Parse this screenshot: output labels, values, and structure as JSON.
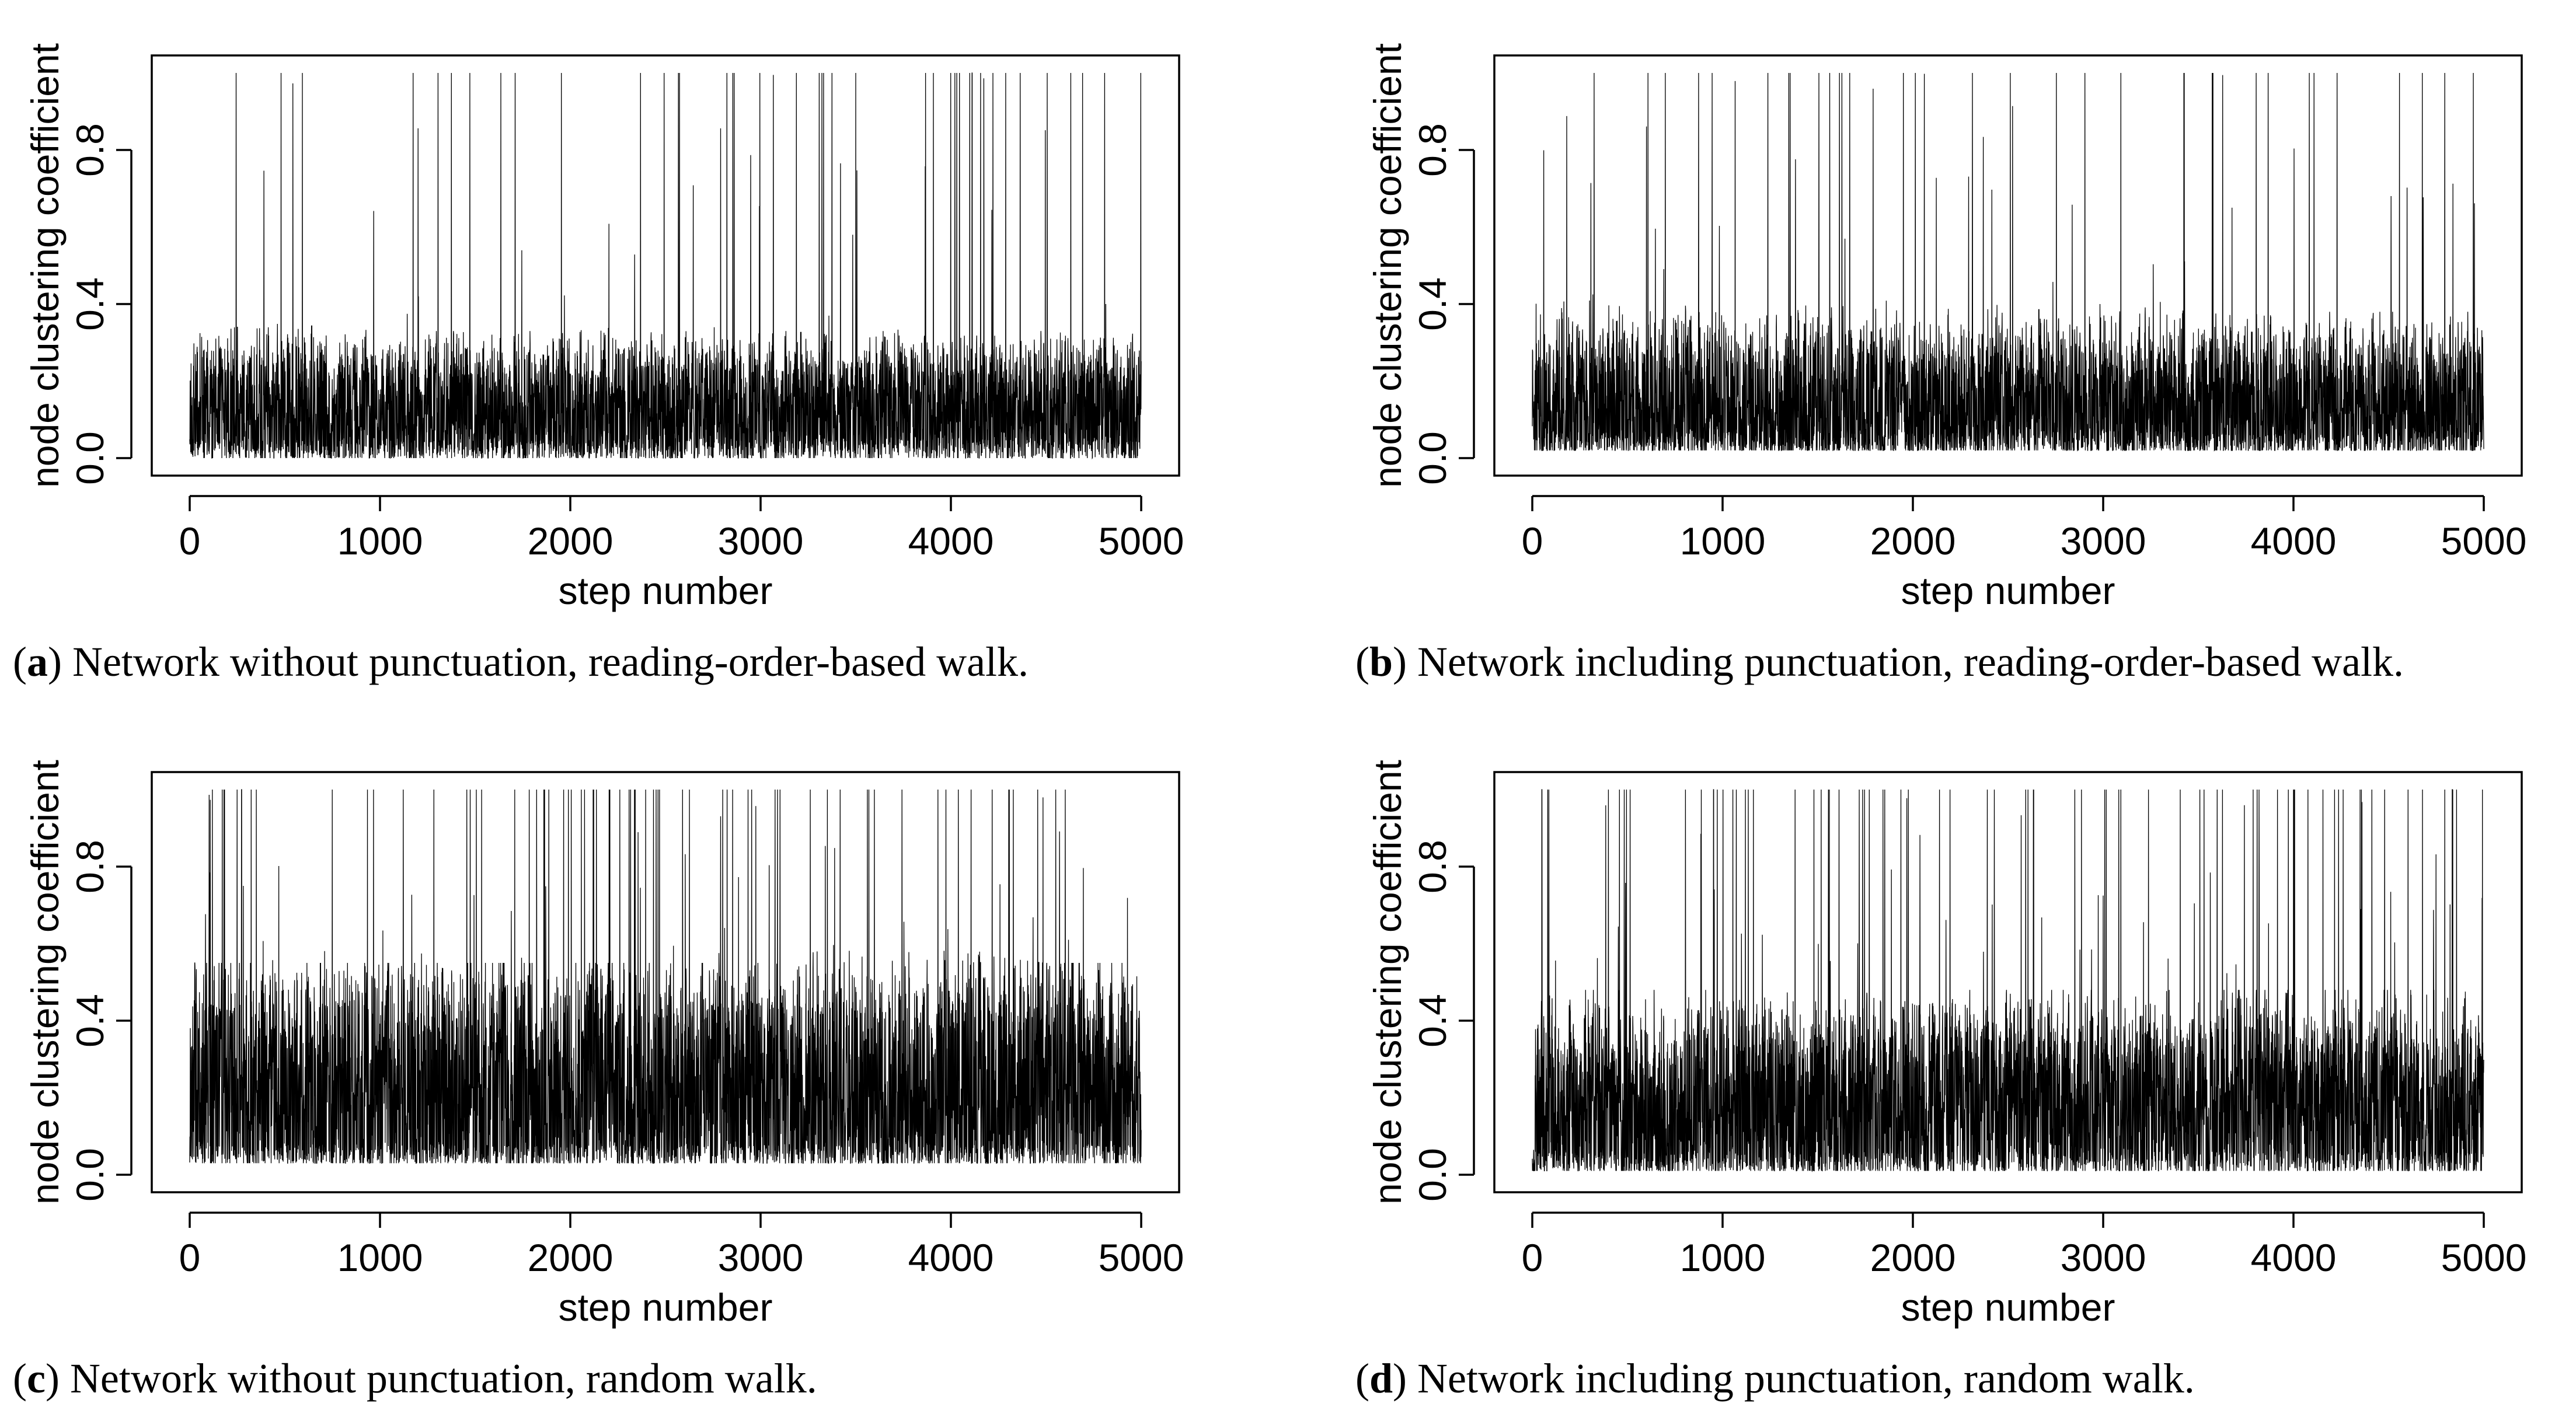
{
  "chart_data": [
    {
      "type": "line",
      "id": "a",
      "caption_letter": "a",
      "caption_text": " Network without punctuation, reading-order-based walk.",
      "xlabel": "step number",
      "ylabel": "node clustering coefficient",
      "xlim": [
        0,
        5000
      ],
      "ylim": [
        0,
        1
      ],
      "xticks": [
        "0",
        "1000",
        "2000",
        "3000",
        "4000",
        "5000"
      ],
      "yticks": [
        "0.0",
        "0.4",
        "0.8"
      ],
      "series": [
        {
          "name": "node clustering coefficient",
          "n_steps": 5000,
          "seed": 11,
          "base_mean": 0.14,
          "base_spread": 0.12,
          "spike_rate": 0.012,
          "spike_max": 1.0,
          "floor": 0.0
        }
      ],
      "envelope": {
        "x": [
          0,
          500,
          1000,
          1500,
          2000,
          2500,
          3000,
          3500,
          4000,
          4500,
          5000
        ],
        "typical_max": [
          0.33,
          0.35,
          0.33,
          0.33,
          0.33,
          0.35,
          0.33,
          0.33,
          0.33,
          0.33,
          0.33
        ]
      }
    },
    {
      "type": "line",
      "id": "b",
      "caption_letter": "b",
      "caption_text": " Network including punctuation, reading-order-based walk.",
      "xlabel": "step number",
      "ylabel": "node clustering coefficient",
      "xlim": [
        0,
        5000
      ],
      "ylim": [
        0,
        1
      ],
      "xticks": [
        "0",
        "1000",
        "2000",
        "3000",
        "4000",
        "5000"
      ],
      "yticks": [
        "0.0",
        "0.4",
        "0.8"
      ],
      "series": [
        {
          "name": "node clustering coefficient",
          "n_steps": 5000,
          "seed": 23,
          "base_mean": 0.16,
          "base_spread": 0.14,
          "spike_rate": 0.013,
          "spike_max": 1.0,
          "floor": 0.02
        }
      ],
      "envelope": {
        "x": [
          0,
          500,
          1000,
          1500,
          2000,
          2500,
          3000,
          3500,
          4000,
          4500,
          5000
        ],
        "typical_max": [
          0.4,
          0.42,
          0.4,
          0.4,
          0.38,
          0.4,
          0.4,
          0.38,
          0.38,
          0.38,
          0.38
        ]
      }
    },
    {
      "type": "line",
      "id": "c",
      "caption_letter": "c",
      "caption_text": " Network without punctuation, random walk.",
      "xlabel": "step number",
      "ylabel": "node clustering coefficient",
      "xlim": [
        0,
        5000
      ],
      "ylim": [
        0,
        1
      ],
      "xticks": [
        "0",
        "1000",
        "2000",
        "3000",
        "4000",
        "5000"
      ],
      "yticks": [
        "0.0",
        "0.4",
        "0.8"
      ],
      "series": [
        {
          "name": "node clustering coefficient",
          "n_steps": 5000,
          "seed": 37,
          "base_mean": 0.26,
          "base_spread": 0.2,
          "spike_rate": 0.02,
          "spike_max": 1.0,
          "floor": 0.03
        }
      ],
      "envelope": {
        "x": [
          0,
          500,
          1000,
          1500,
          2000,
          2500,
          3000,
          3500,
          4000,
          4500,
          5000
        ],
        "typical_max": [
          0.55,
          0.55,
          0.55,
          0.55,
          0.55,
          0.55,
          0.55,
          0.6,
          0.58,
          0.55,
          0.55
        ]
      }
    },
    {
      "type": "line",
      "id": "d",
      "caption_letter": "d",
      "caption_text": " Network including punctuation, random walk.",
      "xlabel": "step number",
      "ylabel": "node clustering coefficient",
      "xlim": [
        0,
        5000
      ],
      "ylim": [
        0,
        1
      ],
      "xticks": [
        "0",
        "1000",
        "2000",
        "3000",
        "4000",
        "5000"
      ],
      "yticks": [
        "0.0",
        "0.4",
        "0.8"
      ],
      "series": [
        {
          "name": "node clustering coefficient",
          "n_steps": 5000,
          "seed": 53,
          "base_mean": 0.2,
          "base_spread": 0.19,
          "spike_rate": 0.022,
          "spike_max": 1.0,
          "floor": 0.01
        }
      ],
      "envelope": {
        "x": [
          0,
          500,
          1000,
          1500,
          2000,
          2500,
          3000,
          3500,
          4000,
          4500,
          5000
        ],
        "typical_max": [
          0.48,
          0.48,
          0.48,
          0.48,
          0.48,
          0.48,
          0.48,
          0.48,
          0.48,
          0.48,
          0.48
        ]
      }
    }
  ]
}
